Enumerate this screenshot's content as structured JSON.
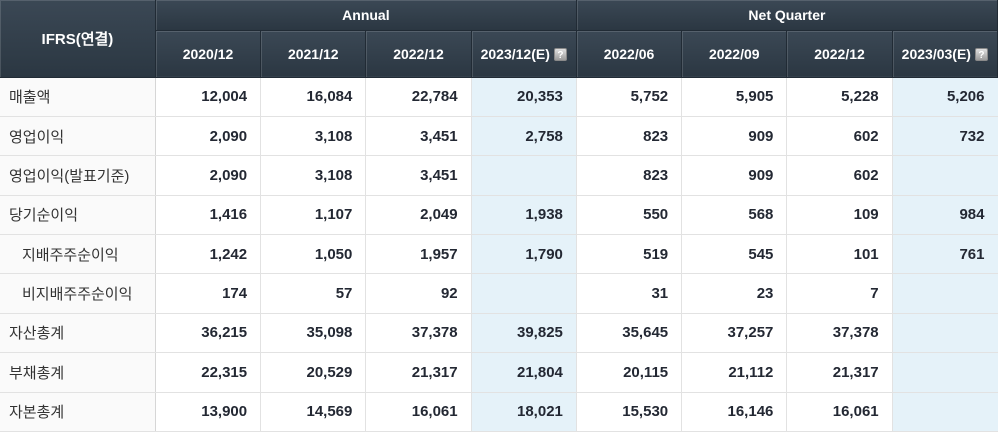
{
  "table": {
    "corner_label": "IFRS(연결)",
    "col_groups": [
      {
        "label": "Annual",
        "span": 4
      },
      {
        "label": "Net Quarter",
        "span": 4
      }
    ],
    "columns": [
      {
        "label": "2020/12",
        "estimate": false
      },
      {
        "label": "2021/12",
        "estimate": false
      },
      {
        "label": "2022/12",
        "estimate": false
      },
      {
        "label": "2023/12(E)",
        "estimate": true,
        "help_icon": "?"
      },
      {
        "label": "2022/06",
        "estimate": false
      },
      {
        "label": "2022/09",
        "estimate": false
      },
      {
        "label": "2022/12",
        "estimate": false
      },
      {
        "label": "2023/03(E)",
        "estimate": true,
        "help_icon": "?"
      }
    ],
    "rows": [
      {
        "label": "매출액",
        "indent": false,
        "values": [
          "12,004",
          "16,084",
          "22,784",
          "20,353",
          "5,752",
          "5,905",
          "5,228",
          "5,206"
        ]
      },
      {
        "label": "영업이익",
        "indent": false,
        "values": [
          "2,090",
          "3,108",
          "3,451",
          "2,758",
          "823",
          "909",
          "602",
          "732"
        ]
      },
      {
        "label": "영업이익(발표기준)",
        "indent": false,
        "values": [
          "2,090",
          "3,108",
          "3,451",
          "",
          "823",
          "909",
          "602",
          ""
        ]
      },
      {
        "label": "당기순이익",
        "indent": false,
        "values": [
          "1,416",
          "1,107",
          "2,049",
          "1,938",
          "550",
          "568",
          "109",
          "984"
        ]
      },
      {
        "label": "지배주주순이익",
        "indent": true,
        "values": [
          "1,242",
          "1,050",
          "1,957",
          "1,790",
          "519",
          "545",
          "101",
          "761"
        ]
      },
      {
        "label": "비지배주주순이익",
        "indent": true,
        "values": [
          "174",
          "57",
          "92",
          "",
          "31",
          "23",
          "7",
          ""
        ]
      },
      {
        "label": "자산총계",
        "indent": false,
        "values": [
          "36,215",
          "35,098",
          "37,378",
          "39,825",
          "35,645",
          "37,257",
          "37,378",
          ""
        ]
      },
      {
        "label": "부채총계",
        "indent": false,
        "values": [
          "22,315",
          "20,529",
          "21,317",
          "21,804",
          "20,115",
          "21,112",
          "21,317",
          ""
        ]
      },
      {
        "label": "자본총계",
        "indent": false,
        "values": [
          "13,900",
          "14,569",
          "16,061",
          "18,021",
          "15,530",
          "16,146",
          "16,061",
          ""
        ]
      }
    ]
  },
  "colors": {
    "header_bg_top": "#3b4855",
    "header_bg_bottom": "#2b3742",
    "header_text": "#ffffff",
    "header_border": "#212b35",
    "estimate_cell_bg": "#e5f2f9",
    "label_cell_bg": "#fafafa",
    "body_border": "#e2e2e2",
    "value_text": "#232833",
    "label_text": "#333333"
  }
}
